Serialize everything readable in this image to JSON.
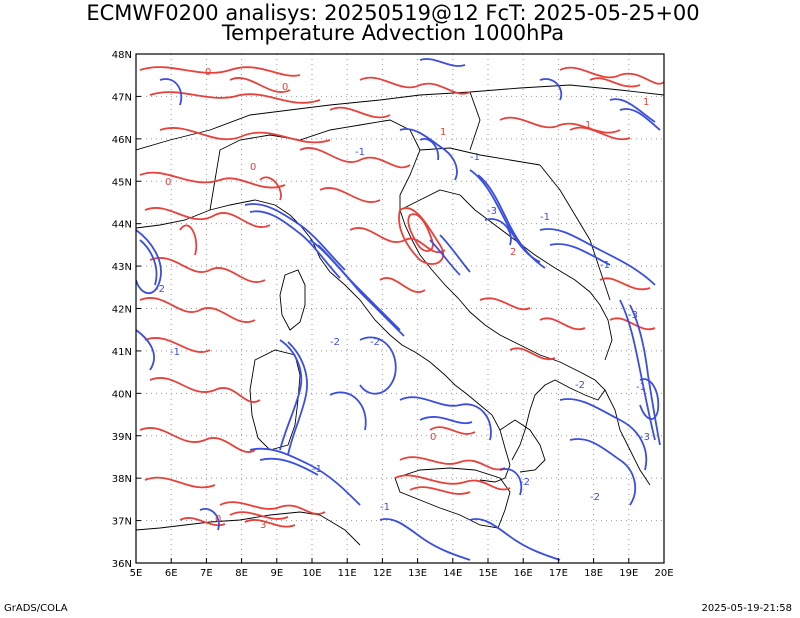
{
  "title_line1": "ECMWF0200 analisys: 20250519@12 FcT: 2025-05-25+00",
  "title_line2": "Temperature Advection 1000hPa",
  "footer_left": "GrADS/COLA",
  "footer_right": "2025-05-19-21:58",
  "chart_data": {
    "type": "map",
    "lon_range": [
      5,
      20
    ],
    "lat_range": [
      36,
      48
    ],
    "x_ticks": [
      "5E",
      "6E",
      "7E",
      "8E",
      "9E",
      "10E",
      "11E",
      "12E",
      "13E",
      "14E",
      "15E",
      "16E",
      "17E",
      "18E",
      "19E",
      "20E"
    ],
    "y_ticks": [
      "36N",
      "37N",
      "38N",
      "39N",
      "40N",
      "41N",
      "42N",
      "43N",
      "44N",
      "45N",
      "46N",
      "47N",
      "48N"
    ],
    "grid": "dotted",
    "positive_color": "#e8413b",
    "negative_color": "#3a4ee0",
    "contour_labels": [
      "1",
      "-1",
      "2",
      "-2",
      "3",
      "-3",
      "0"
    ]
  }
}
